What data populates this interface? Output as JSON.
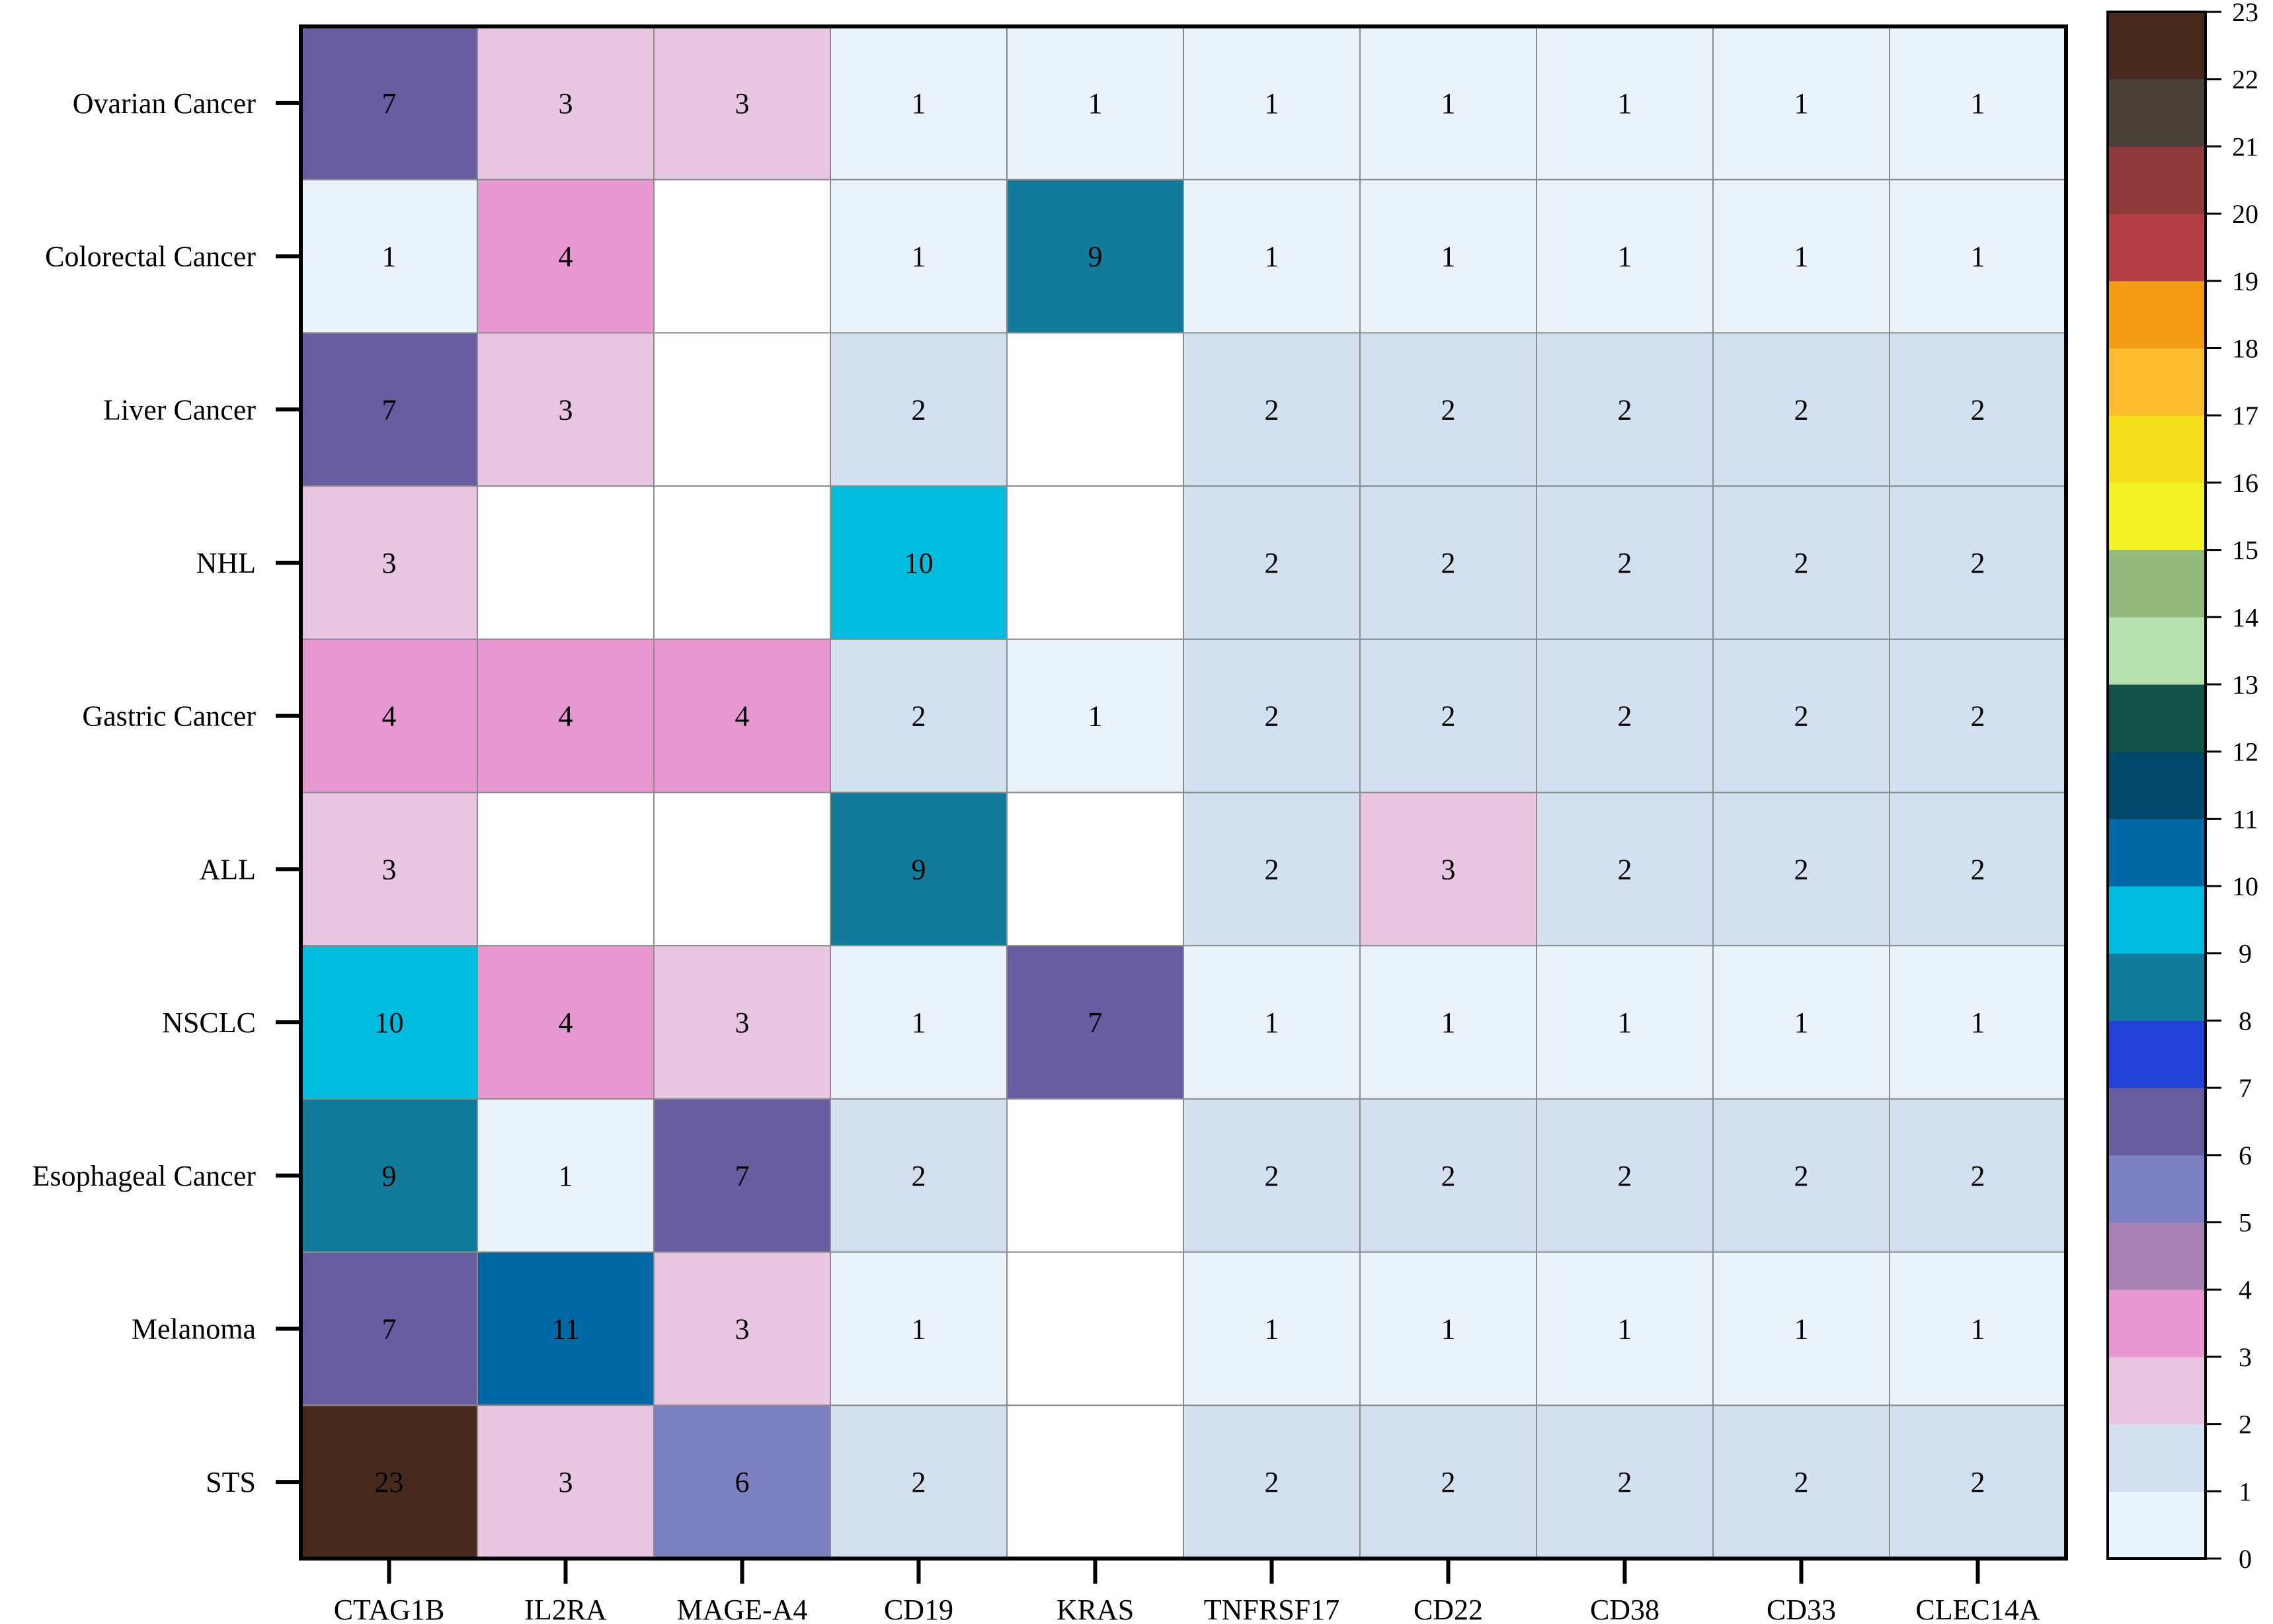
{
  "chart_data": {
    "type": "heatmap",
    "title": "",
    "xlabel": "",
    "ylabel": "",
    "x_categories": [
      "CTAG1B",
      "IL2RA",
      "MAGE-A4",
      "CD19",
      "KRAS",
      "TNFRSF17",
      "CD22",
      "CD38",
      "CD33",
      "CLEC14A"
    ],
    "y_categories": [
      "Ovarian Cancer",
      "Colorectal Cancer",
      "Liver Cancer",
      "NHL",
      "Gastric Cancer",
      "ALL",
      "NSCLC",
      "Esophageal Cancer",
      "Melanoma",
      "STS"
    ],
    "values": [
      [
        7,
        3,
        3,
        1,
        1,
        1,
        1,
        1,
        1,
        1
      ],
      [
        1,
        4,
        null,
        1,
        9,
        1,
        1,
        1,
        1,
        1
      ],
      [
        7,
        3,
        null,
        2,
        null,
        2,
        2,
        2,
        2,
        2
      ],
      [
        3,
        null,
        null,
        10,
        null,
        2,
        2,
        2,
        2,
        2
      ],
      [
        4,
        4,
        4,
        2,
        1,
        2,
        2,
        2,
        2,
        2
      ],
      [
        3,
        null,
        null,
        9,
        null,
        2,
        3,
        2,
        2,
        2
      ],
      [
        10,
        4,
        3,
        1,
        7,
        1,
        1,
        1,
        1,
        1
      ],
      [
        9,
        1,
        7,
        2,
        null,
        2,
        2,
        2,
        2,
        2
      ],
      [
        7,
        11,
        3,
        1,
        null,
        1,
        1,
        1,
        1,
        1
      ],
      [
        23,
        3,
        6,
        2,
        null,
        2,
        2,
        2,
        2,
        2
      ]
    ],
    "colorbar": {
      "min": 0,
      "max": 23,
      "ticks": [
        0,
        1,
        2,
        3,
        4,
        5,
        6,
        7,
        8,
        9,
        10,
        11,
        12,
        13,
        14,
        15,
        16,
        17,
        18,
        19,
        20,
        21,
        22,
        23
      ],
      "colors": [
        "#eaf2fa",
        "#d3e0ef",
        "#e8c6e1",
        "#e798d1",
        "#a882b5",
        "#7c80c0",
        "#685da0",
        "#2242d6",
        "#127a9a",
        "#00bde0",
        "#0068a4",
        "#004769",
        "#14534a",
        "#b6e0ad",
        "#95ba7f",
        "#f2f224",
        "#f6de1a",
        "#fcbd30",
        "#f49d15",
        "#b43e45",
        "#8e3a3c",
        "#4a4039",
        "#48291d"
      ]
    },
    "legend": "right"
  }
}
